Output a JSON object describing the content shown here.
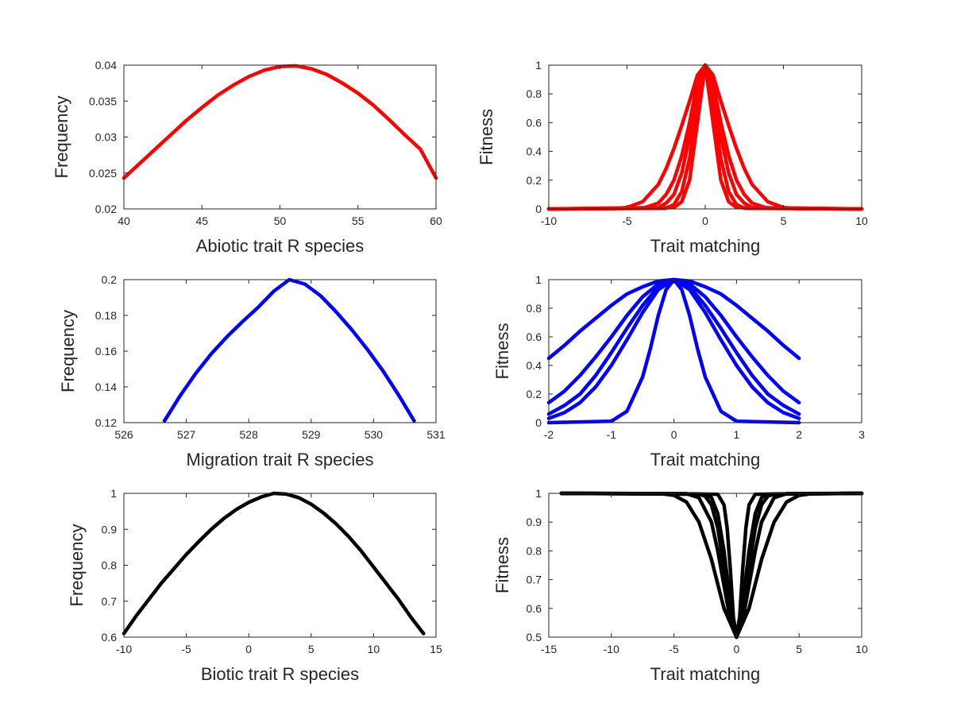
{
  "chart_data": [
    {
      "type": "line",
      "xlabel": "Abiotic trait R species",
      "ylabel": "Frequency",
      "xlim": [
        40,
        60
      ],
      "ylim": [
        0.02,
        0.04
      ],
      "xticks": [
        40,
        45,
        50,
        55,
        60
      ],
      "xtick_labels": [
        "40",
        "45",
        "50",
        "55",
        "60"
      ],
      "yticks": [
        0.02,
        0.025,
        0.03,
        0.035,
        0.04
      ],
      "ytick_labels": [
        "0.02",
        "0.025",
        "0.03",
        "0.035",
        "0.04"
      ],
      "color": "#ff0000",
      "series": [
        {
          "x": [
            40,
            41,
            42,
            43,
            44,
            45,
            46,
            47,
            48,
            49,
            50,
            51,
            52,
            53,
            54,
            55,
            56,
            57,
            58,
            59,
            60
          ],
          "y": [
            0.0243,
            0.0263,
            0.0283,
            0.0303,
            0.0323,
            0.0341,
            0.0358,
            0.0372,
            0.0384,
            0.0393,
            0.0398,
            0.0399,
            0.0395,
            0.0387,
            0.0375,
            0.0361,
            0.0344,
            0.0324,
            0.0303,
            0.0283,
            0.0243
          ]
        }
      ]
    },
    {
      "type": "line",
      "xlabel": "Trait matching",
      "ylabel": "Fitness",
      "xlim": [
        -10,
        10
      ],
      "ylim": [
        0,
        1
      ],
      "xticks": [
        -10,
        -5,
        0,
        5,
        10
      ],
      "xtick_labels": [
        "-10",
        "-5",
        "0",
        "5",
        "10"
      ],
      "yticks": [
        0,
        0.2,
        0.4,
        0.6,
        0.8,
        1
      ],
      "ytick_labels": [
        "0",
        "0.2",
        "0.4",
        "0.6",
        "0.8",
        "1"
      ],
      "color": "#ff0000",
      "series": [
        {
          "x": [
            -10,
            -6,
            -5,
            -4,
            -3,
            -2.5,
            -2,
            -1.5,
            -1,
            -0.5,
            0,
            0.5,
            1,
            1.5,
            2,
            2.5,
            3,
            4,
            5,
            6,
            10
          ],
          "y": [
            0,
            0.002,
            0.01,
            0.05,
            0.17,
            0.28,
            0.42,
            0.58,
            0.75,
            0.93,
            1,
            0.93,
            0.75,
            0.58,
            0.42,
            0.28,
            0.17,
            0.05,
            0.01,
            0.002,
            0
          ]
        },
        {
          "x": [
            -10,
            -4,
            -3,
            -2.5,
            -2,
            -1.5,
            -1,
            -0.5,
            0,
            0.5,
            1,
            1.5,
            2,
            2.5,
            3,
            4,
            10
          ],
          "y": [
            0,
            0.005,
            0.04,
            0.1,
            0.2,
            0.37,
            0.6,
            0.88,
            1,
            0.88,
            0.6,
            0.37,
            0.2,
            0.1,
            0.04,
            0.005,
            0
          ]
        },
        {
          "x": [
            -10,
            -3,
            -2.5,
            -2,
            -1.5,
            -1,
            -0.5,
            0,
            0.5,
            1,
            1.5,
            2,
            2.5,
            3,
            10
          ],
          "y": [
            0,
            0.01,
            0.04,
            0.1,
            0.25,
            0.5,
            0.82,
            1,
            0.82,
            0.5,
            0.25,
            0.1,
            0.04,
            0.01,
            0
          ]
        },
        {
          "x": [
            -10,
            -2.5,
            -2,
            -1.5,
            -1,
            -0.5,
            0,
            0.5,
            1,
            1.5,
            2,
            2.5,
            10
          ],
          "y": [
            0,
            0.005,
            0.03,
            0.12,
            0.35,
            0.72,
            1,
            0.72,
            0.35,
            0.12,
            0.03,
            0.005,
            0
          ]
        },
        {
          "x": [
            -10,
            -2,
            -1.5,
            -1,
            -0.5,
            0,
            0.5,
            1,
            1.5,
            2,
            10
          ],
          "y": [
            0,
            0.01,
            0.05,
            0.2,
            0.6,
            1,
            0.6,
            0.2,
            0.05,
            0.01,
            0
          ]
        }
      ]
    },
    {
      "type": "line",
      "xlabel": "Migration trait R species",
      "ylabel": "Frequency",
      "xlim": [
        526,
        531
      ],
      "ylim": [
        0.12,
        0.2
      ],
      "xticks": [
        526,
        527,
        528,
        529,
        530,
        531
      ],
      "xtick_labels": [
        "526",
        "527",
        "528",
        "529",
        "530",
        "531"
      ],
      "yticks": [
        0.12,
        0.14,
        0.16,
        0.18,
        0.2
      ],
      "ytick_labels": [
        "0.12",
        "0.14",
        "0.16",
        "0.18",
        "0.2"
      ],
      "color": "#0000ff",
      "series": [
        {
          "x": [
            526.65,
            526.9,
            527.15,
            527.4,
            527.65,
            527.9,
            528.15,
            528.4,
            528.65,
            528.9,
            529.15,
            529.4,
            529.65,
            529.9,
            530.15,
            530.4,
            530.65
          ],
          "y": [
            0.121,
            0.135,
            0.1475,
            0.1585,
            0.168,
            0.1765,
            0.1845,
            0.1935,
            0.2,
            0.1975,
            0.191,
            0.182,
            0.172,
            0.161,
            0.149,
            0.1355,
            0.121
          ]
        }
      ]
    },
    {
      "type": "line",
      "xlabel": "Trait matching",
      "ylabel": "Fitness",
      "xlim": [
        -2,
        3
      ],
      "ylim": [
        0,
        1
      ],
      "xticks": [
        -2,
        -1,
        0,
        1,
        2,
        3
      ],
      "xtick_labels": [
        "-2",
        "-1",
        "0",
        "1",
        "2",
        "3"
      ],
      "yticks": [
        0,
        0.2,
        0.4,
        0.6,
        0.8,
        1
      ],
      "ytick_labels": [
        "0",
        "0.2",
        "0.4",
        "0.6",
        "0.8",
        "1"
      ],
      "color": "#0000ff",
      "series": [
        {
          "x": [
            -2,
            -1.75,
            -1.5,
            -1.25,
            -1,
            -0.75,
            -0.5,
            -0.25,
            0,
            0.25,
            0.5,
            0.75,
            1,
            1.25,
            1.5,
            1.75,
            2
          ],
          "y": [
            0.45,
            0.54,
            0.64,
            0.73,
            0.82,
            0.9,
            0.95,
            0.99,
            1,
            0.99,
            0.95,
            0.9,
            0.82,
            0.73,
            0.64,
            0.54,
            0.45
          ]
        },
        {
          "x": [
            -2,
            -1.75,
            -1.5,
            -1.25,
            -1,
            -0.75,
            -0.5,
            -0.25,
            0,
            0.25,
            0.5,
            0.75,
            1,
            1.25,
            1.5,
            1.75,
            2
          ],
          "y": [
            0.14,
            0.22,
            0.33,
            0.46,
            0.6,
            0.75,
            0.88,
            0.97,
            1,
            0.97,
            0.88,
            0.75,
            0.6,
            0.46,
            0.33,
            0.22,
            0.14
          ]
        },
        {
          "x": [
            -2,
            -1.75,
            -1.5,
            -1.25,
            -1,
            -0.75,
            -0.5,
            -0.25,
            0,
            0.25,
            0.5,
            0.75,
            1,
            1.25,
            1.5,
            1.75,
            2
          ],
          "y": [
            0.06,
            0.12,
            0.2,
            0.33,
            0.49,
            0.66,
            0.82,
            0.95,
            1,
            0.95,
            0.82,
            0.66,
            0.49,
            0.33,
            0.2,
            0.12,
            0.06
          ]
        },
        {
          "x": [
            -2,
            -1.75,
            -1.5,
            -1.25,
            -1,
            -0.75,
            -0.5,
            -0.25,
            0,
            0.25,
            0.5,
            0.75,
            1,
            1.25,
            1.5,
            1.75,
            2
          ],
          "y": [
            0.03,
            0.07,
            0.14,
            0.25,
            0.4,
            0.58,
            0.77,
            0.93,
            1,
            0.93,
            0.77,
            0.58,
            0.4,
            0.25,
            0.14,
            0.07,
            0.03
          ]
        },
        {
          "x": [
            -2,
            -1,
            -0.75,
            -0.5,
            -0.375,
            -0.25,
            -0.125,
            0,
            0.125,
            0.25,
            0.375,
            0.5,
            0.75,
            1,
            2
          ],
          "y": [
            0,
            0.01,
            0.08,
            0.32,
            0.52,
            0.75,
            0.93,
            1,
            0.93,
            0.75,
            0.52,
            0.32,
            0.08,
            0.01,
            0
          ]
        }
      ]
    },
    {
      "type": "line",
      "xlabel": "Biotic trait R species",
      "ylabel": "Frequency",
      "xlim": [
        -10,
        15
      ],
      "ylim": [
        0.6,
        1
      ],
      "xticks": [
        -10,
        -5,
        0,
        5,
        10,
        15
      ],
      "xtick_labels": [
        "-10",
        "-5",
        "0",
        "5",
        "10",
        "15"
      ],
      "yticks": [
        0.6,
        0.7,
        0.8,
        0.9,
        1
      ],
      "ytick_labels": [
        "0.6",
        "0.7",
        "0.8",
        "0.9",
        "1"
      ],
      "color": "#000000",
      "series": [
        {
          "x": [
            -10,
            -9,
            -8,
            -7,
            -6,
            -5,
            -4,
            -3,
            -2,
            -1,
            0,
            1,
            2,
            3,
            4,
            5,
            6,
            7,
            8,
            9,
            10,
            11,
            12,
            13,
            14
          ],
          "y": [
            0.61,
            0.66,
            0.705,
            0.75,
            0.79,
            0.83,
            0.866,
            0.9,
            0.93,
            0.955,
            0.975,
            0.99,
            1,
            0.998,
            0.988,
            0.97,
            0.945,
            0.915,
            0.88,
            0.84,
            0.795,
            0.75,
            0.705,
            0.655,
            0.61
          ]
        }
      ]
    },
    {
      "type": "line",
      "xlabel": "Trait matching",
      "ylabel": "Fitness",
      "xlim": [
        -15,
        10
      ],
      "ylim": [
        0.5,
        1
      ],
      "xticks": [
        -15,
        -10,
        -5,
        0,
        5,
        10
      ],
      "xtick_labels": [
        "-15",
        "-10",
        "-5",
        "0",
        "5",
        "10"
      ],
      "yticks": [
        0.5,
        0.6,
        0.7,
        0.8,
        0.9,
        1
      ],
      "ytick_labels": [
        "0.5",
        "0.6",
        "0.7",
        "0.8",
        "0.9",
        "1"
      ],
      "color": "#000000",
      "series": [
        {
          "x": [
            -14,
            -6,
            -5,
            -4,
            -3,
            -2,
            -1,
            0,
            1,
            2,
            3,
            4,
            5,
            6,
            10
          ],
          "y": [
            1,
            0.999,
            0.993,
            0.97,
            0.9,
            0.77,
            0.6,
            0.5,
            0.6,
            0.77,
            0.9,
            0.97,
            0.993,
            0.999,
            1
          ]
        },
        {
          "x": [
            -14,
            -4,
            -3,
            -2,
            -1.5,
            -1,
            -0.5,
            0,
            0.5,
            1,
            1.5,
            2,
            3,
            4,
            10
          ],
          "y": [
            1,
            0.999,
            0.985,
            0.9,
            0.8,
            0.68,
            0.56,
            0.5,
            0.56,
            0.68,
            0.8,
            0.9,
            0.985,
            0.999,
            1
          ]
        },
        {
          "x": [
            -14,
            -3,
            -2.5,
            -2,
            -1.5,
            -1,
            -0.5,
            0,
            0.5,
            1,
            1.5,
            2,
            2.5,
            3,
            10
          ],
          "y": [
            1,
            0.998,
            0.99,
            0.96,
            0.88,
            0.74,
            0.59,
            0.5,
            0.59,
            0.74,
            0.88,
            0.96,
            0.99,
            0.998,
            1
          ]
        },
        {
          "x": [
            -14,
            -2.5,
            -2,
            -1.5,
            -1,
            -0.5,
            0,
            0.5,
            1,
            1.5,
            2,
            2.5,
            10
          ],
          "y": [
            1,
            0.997,
            0.985,
            0.93,
            0.8,
            0.62,
            0.5,
            0.62,
            0.8,
            0.93,
            0.985,
            0.997,
            1
          ]
        },
        {
          "x": [
            -14,
            -1.5,
            -1,
            -0.75,
            -0.5,
            -0.25,
            0,
            0.25,
            0.5,
            0.75,
            1,
            1.5,
            10
          ],
          "y": [
            1,
            0.997,
            0.96,
            0.88,
            0.74,
            0.57,
            0.5,
            0.57,
            0.74,
            0.88,
            0.96,
            0.997,
            1
          ]
        }
      ]
    }
  ]
}
